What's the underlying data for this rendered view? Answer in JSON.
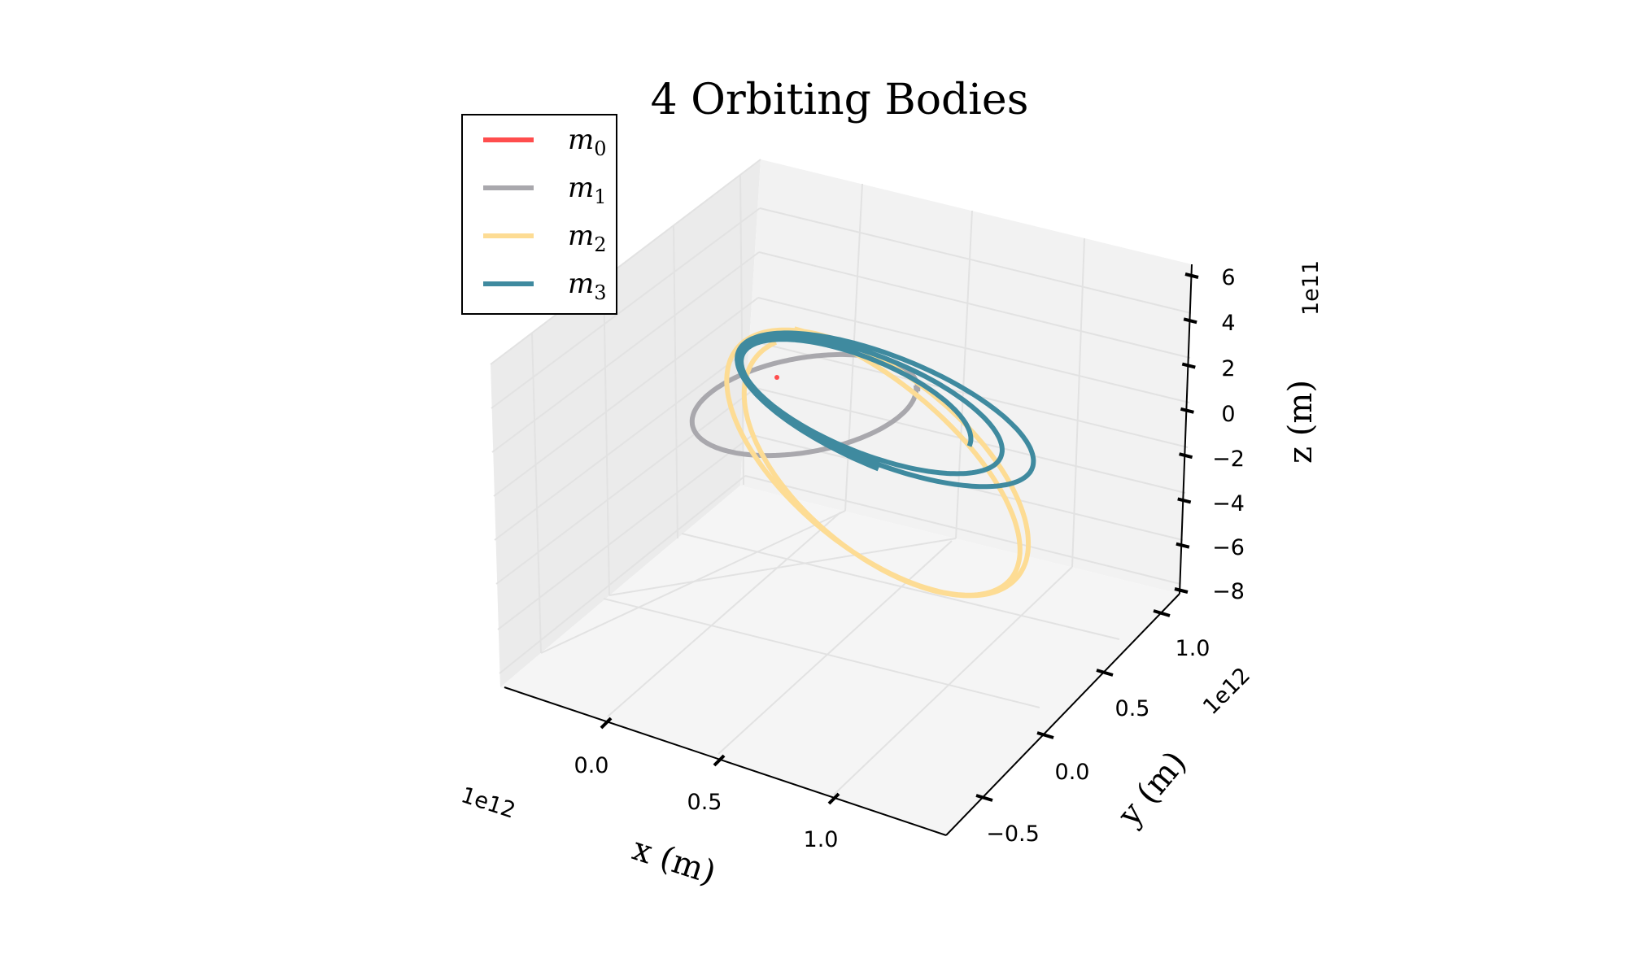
{
  "chart_data": {
    "type": "line",
    "projection": "3d",
    "title": "4 Orbiting Bodies",
    "xlabel": "x (m)",
    "ylabel": "y (m)",
    "zlabel": "z (m)",
    "x_offset": "1e12",
    "y_offset": "1e12",
    "z_offset": "1e11",
    "x_ticks": [
      "0.0",
      "0.5",
      "1.0"
    ],
    "y_ticks": [
      "−0.5",
      "0.0",
      "0.5",
      "1.0"
    ],
    "z_ticks": [
      "−8",
      "−6",
      "−4",
      "−2",
      "0",
      "2",
      "4",
      "6"
    ],
    "xlim": [
      -0.4,
      1.45
    ],
    "ylim": [
      -0.75,
      1.25
    ],
    "zlim": [
      -8,
      6.5
    ],
    "grid": true,
    "legend_position": "top-left",
    "series": [
      {
        "name": "m",
        "subscript": "0",
        "color": "#ff4d4d",
        "kind": "point",
        "note": "central mass at origin"
      },
      {
        "name": "m",
        "subscript": "1",
        "color": "#a9a8ad",
        "kind": "orbit"
      },
      {
        "name": "m",
        "subscript": "2",
        "color": "#fddc94",
        "kind": "orbit"
      },
      {
        "name": "m",
        "subscript": "3",
        "color": "#3f8a9f",
        "kind": "orbit"
      }
    ]
  }
}
